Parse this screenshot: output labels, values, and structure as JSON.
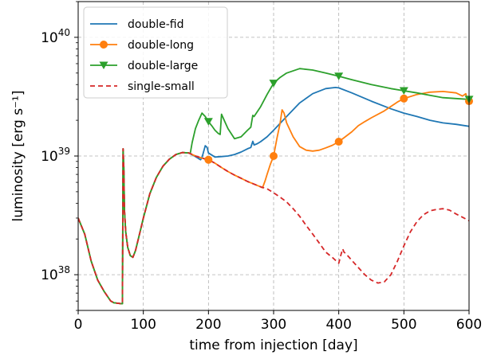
{
  "chart_data": {
    "type": "line",
    "xlabel": "time from injection [day]",
    "ylabel": "luminosity [erg s⁻¹]",
    "x_scale": "linear",
    "y_scale": "log",
    "xlim": [
      0,
      600
    ],
    "ylim": [
      5e+37,
      2e+40
    ],
    "x_ticks": [
      0,
      100,
      200,
      300,
      400,
      500,
      600
    ],
    "x_tick_labels": [
      "0",
      "100",
      "200",
      "300",
      "400",
      "500",
      "600"
    ],
    "y_ticks": [
      1e+38,
      1e+39,
      1e+40
    ],
    "y_tick_labels": [
      {
        "base": "10",
        "exp": "38"
      },
      {
        "base": "10",
        "exp": "39"
      },
      {
        "base": "10",
        "exp": "40"
      }
    ],
    "grid": true,
    "legend_position": "top-left",
    "series": [
      {
        "name": "double-fid",
        "color": "#1f77b4",
        "dash": "solid",
        "marker": "none",
        "x": [
          0,
          10,
          20,
          30,
          40,
          50,
          55,
          66,
          68,
          69,
          70,
          71,
          73,
          76,
          80,
          84,
          88,
          95,
          100,
          110,
          120,
          130,
          140,
          150,
          160,
          170,
          180,
          185,
          188,
          190,
          195,
          198,
          200,
          210,
          220,
          230,
          240,
          250,
          260,
          265,
          268,
          270,
          275,
          280,
          290,
          300,
          320,
          340,
          360,
          380,
          395,
          400,
          420,
          450,
          480,
          500,
          520,
          540,
          560,
          580,
          600
        ],
        "y": [
          3e+38,
          2.2e+38,
          1.3e+38,
          9e+37,
          7.2e+37,
          6e+37,
          5.8e+37,
          5.7e+37,
          5.7e+37,
          1.15e+39,
          8e+38,
          3.5e+38,
          2.3e+38,
          1.7e+38,
          1.45e+38,
          1.4e+38,
          1.6e+38,
          2.3e+38,
          3e+38,
          4.8e+38,
          6.6e+38,
          8.2e+38,
          9.4e+38,
          1.03e+39,
          1.07e+39,
          1.06e+39,
          9.9e+38,
          9.5e+38,
          9.3e+38,
          9.7e+38,
          1.22e+39,
          1.18e+39,
          1.06e+39,
          9.8e+38,
          9.9e+38,
          1e+39,
          1.03e+39,
          1.08e+39,
          1.15e+39,
          1.18e+39,
          1.33e+39,
          1.24e+39,
          1.27e+39,
          1.32e+39,
          1.45e+39,
          1.65e+39,
          2.15e+39,
          2.8e+39,
          3.35e+39,
          3.7e+39,
          3.78e+39,
          3.75e+39,
          3.4e+39,
          2.9e+39,
          2.5e+39,
          2.3e+39,
          2.15e+39,
          2e+39,
          1.9e+39,
          1.85e+39,
          1.78e+39
        ]
      },
      {
        "name": "double-long",
        "color": "#ff7f0e",
        "dash": "solid",
        "marker": "circle",
        "marker_x": [
          200,
          300,
          400,
          500,
          600
        ],
        "x": [
          0,
          10,
          20,
          30,
          40,
          50,
          55,
          66,
          68,
          69,
          70,
          71,
          73,
          76,
          80,
          84,
          88,
          95,
          100,
          110,
          120,
          130,
          140,
          150,
          160,
          170,
          180,
          190,
          200,
          210,
          220,
          230,
          240,
          250,
          260,
          270,
          280,
          283,
          287,
          290,
          295,
          300,
          305,
          310,
          313,
          316,
          320,
          330,
          340,
          350,
          360,
          370,
          380,
          390,
          400,
          410,
          420,
          430,
          440,
          450,
          470,
          490,
          500,
          520,
          540,
          560,
          580,
          590,
          595,
          598,
          600
        ],
        "y": [
          3e+38,
          2.2e+38,
          1.3e+38,
          9e+37,
          7.2e+37,
          6e+37,
          5.8e+37,
          5.7e+37,
          5.7e+37,
          1.15e+39,
          8e+38,
          3.5e+38,
          2.3e+38,
          1.7e+38,
          1.45e+38,
          1.4e+38,
          1.6e+38,
          2.3e+38,
          3e+38,
          4.8e+38,
          6.6e+38,
          8.2e+38,
          9.4e+38,
          1.03e+39,
          1.07e+39,
          1.06e+39,
          1e+39,
          9.6e+38,
          9.3e+38,
          8.7e+38,
          8e+38,
          7.4e+38,
          6.9e+38,
          6.5e+38,
          6.1e+38,
          5.8e+38,
          5.5e+38,
          5.4e+38,
          6.2e+38,
          7e+38,
          8.5e+38,
          1e+39,
          1.4e+39,
          1.9e+39,
          2.45e+39,
          2.3e+39,
          1.9e+39,
          1.45e+39,
          1.2e+39,
          1.12e+39,
          1.1e+39,
          1.12e+39,
          1.17e+39,
          1.23e+39,
          1.32e+39,
          1.45e+39,
          1.6e+39,
          1.8e+39,
          1.95e+39,
          2.1e+39,
          2.4e+39,
          2.85e+39,
          3.05e+39,
          3.3e+39,
          3.45e+39,
          3.5e+39,
          3.4e+39,
          3.2e+39,
          3.35e+39,
          2.9e+39,
          2.9e+39
        ]
      },
      {
        "name": "double-large",
        "color": "#2ca02c",
        "dash": "solid",
        "marker": "triangle-down",
        "marker_x": [
          200,
          300,
          400,
          500,
          600
        ],
        "x": [
          0,
          10,
          20,
          30,
          40,
          50,
          55,
          66,
          68,
          69,
          70,
          71,
          73,
          76,
          80,
          84,
          88,
          95,
          100,
          110,
          120,
          130,
          140,
          150,
          160,
          170,
          172,
          175,
          180,
          185,
          190,
          195,
          200,
          205,
          210,
          215,
          218,
          220,
          225,
          230,
          240,
          250,
          260,
          265,
          268,
          270,
          280,
          290,
          300,
          310,
          320,
          340,
          360,
          380,
          400,
          420,
          450,
          480,
          500,
          520,
          540,
          560,
          580,
          600
        ],
        "y": [
          3e+38,
          2.2e+38,
          1.3e+38,
          9e+37,
          7.2e+37,
          6e+37,
          5.8e+37,
          5.7e+37,
          5.7e+37,
          1.15e+39,
          8e+38,
          3.5e+38,
          2.3e+38,
          1.7e+38,
          1.45e+38,
          1.4e+38,
          1.6e+38,
          2.3e+38,
          3e+38,
          4.8e+38,
          6.6e+38,
          8.2e+38,
          9.4e+38,
          1.03e+39,
          1.07e+39,
          1.06e+39,
          1.05e+39,
          1.3e+39,
          1.7e+39,
          2e+39,
          2.3e+39,
          2.15e+39,
          1.95e+39,
          1.8e+39,
          1.65e+39,
          1.55e+39,
          1.52e+39,
          2.25e+39,
          1.95e+39,
          1.7e+39,
          1.4e+39,
          1.45e+39,
          1.65e+39,
          1.75e+39,
          2.2e+39,
          2.15e+39,
          2.6e+39,
          3.3e+39,
          4.1e+39,
          4.6e+39,
          5e+39,
          5.45e+39,
          5.3e+39,
          5e+39,
          4.7e+39,
          4.4e+39,
          4e+39,
          3.7e+39,
          3.55e+39,
          3.4e+39,
          3.25e+39,
          3.1e+39,
          3.05e+39,
          3e+39
        ]
      },
      {
        "name": "single-small",
        "color": "#d62728",
        "dash": "dashed",
        "marker": "none",
        "x": [
          0,
          10,
          20,
          30,
          40,
          50,
          55,
          66,
          68,
          69,
          70,
          71,
          73,
          76,
          80,
          84,
          88,
          95,
          100,
          110,
          120,
          130,
          140,
          150,
          160,
          170,
          180,
          190,
          200,
          210,
          220,
          230,
          240,
          250,
          260,
          270,
          280,
          290,
          300,
          310,
          320,
          330,
          340,
          350,
          360,
          370,
          380,
          390,
          400,
          403,
          406,
          408,
          411,
          415,
          420,
          430,
          440,
          450,
          460,
          470,
          480,
          490,
          500,
          510,
          520,
          530,
          540,
          550,
          560,
          570,
          580,
          590,
          600
        ],
        "y": [
          3e+38,
          2.2e+38,
          1.3e+38,
          9e+37,
          7.2e+37,
          6e+37,
          5.8e+37,
          5.7e+37,
          5.7e+37,
          1.15e+39,
          8e+38,
          3.5e+38,
          2.3e+38,
          1.7e+38,
          1.45e+38,
          1.4e+38,
          1.6e+38,
          2.3e+38,
          3e+38,
          4.8e+38,
          6.6e+38,
          8.2e+38,
          9.4e+38,
          1.03e+39,
          1.07e+39,
          1.06e+39,
          1e+39,
          9.6e+38,
          9.3e+38,
          8.7e+38,
          8e+38,
          7.4e+38,
          6.9e+38,
          6.5e+38,
          6.1e+38,
          5.8e+38,
          5.5e+38,
          5.3e+38,
          4.9e+38,
          4.5e+38,
          4.1e+38,
          3.6e+38,
          3.1e+38,
          2.6e+38,
          2.2e+38,
          1.85e+38,
          1.55e+38,
          1.4e+38,
          1.25e+38,
          1.45e+38,
          1.65e+38,
          1.55e+38,
          1.5e+38,
          1.42e+38,
          1.32e+38,
          1.15e+38,
          1e+38,
          9e+37,
          8.5e+37,
          8.7e+37,
          1e+38,
          1.3e+38,
          1.75e+38,
          2.3e+38,
          2.8e+38,
          3.2e+38,
          3.45e+38,
          3.55e+38,
          3.6e+38,
          3.5e+38,
          3.25e+38,
          3.05e+38,
          2.85e+38
        ]
      }
    ]
  }
}
